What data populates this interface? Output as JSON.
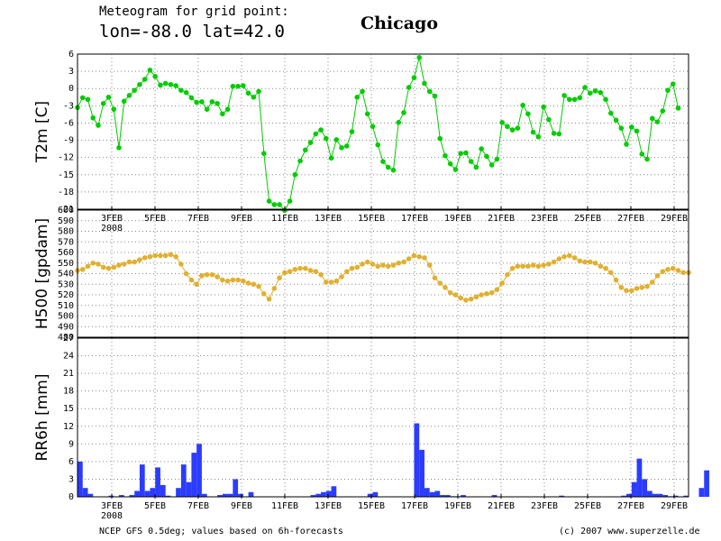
{
  "header": {
    "line1": "Meteogram for grid point:",
    "line2": "lon=-88.0 lat=42.0",
    "city": "Chicago"
  },
  "footer": {
    "left": "NCEP GFS 0.5deg; values based on 6h-forecasts",
    "right": "(c) 2007 www.superzelle.de"
  },
  "year_label": "2008",
  "x_ticks": [
    "3FEB",
    "5FEB",
    "7FEB",
    "9FEB",
    "11FEB",
    "13FEB",
    "15FEB",
    "17FEB",
    "19FEB",
    "21FEB",
    "23FEB",
    "25FEB",
    "27FEB",
    "29FEB"
  ],
  "colors": {
    "t2m": "#00cc00",
    "h500": "#e0b030",
    "rr6h": "#2b3cff",
    "grid": "#888888",
    "frame": "#000000"
  },
  "chart_data": [
    {
      "type": "line",
      "ylabel": "T2m [C]",
      "ylim": [
        -21,
        6
      ],
      "yticks": [
        -21,
        -18,
        -15,
        -12,
        -9,
        -6,
        -3,
        0,
        3,
        6
      ],
      "grid": true,
      "series": [
        {
          "values": [
            -3.3,
            -1.6,
            -1.9,
            -5.1,
            -6.4,
            -2.6,
            -1.5,
            -3.6,
            -10.3,
            -2.2,
            -1.2,
            -0.3,
            0.7,
            1.6,
            3.2,
            2.1,
            0.6,
            0.9,
            0.7,
            0.5,
            -0.3,
            -0.7,
            -1.6,
            -2.4,
            -2.3,
            -3.6,
            -2.3,
            -2.6,
            -4.4,
            -3.6,
            0.4,
            0.4,
            0.5,
            -0.8,
            -1.5,
            -0.5,
            -11.3,
            -19.6,
            -20.2,
            -20.2,
            -21.2,
            -19.6,
            -15.0,
            -12.6,
            -10.7,
            -9.4,
            -7.9,
            -7.2,
            -8.7,
            -12.1,
            -8.9,
            -10.3,
            -10.0,
            -7.5,
            -1.5,
            -0.5,
            -4.4,
            -6.6,
            -9.8,
            -12.7,
            -13.7,
            -14.2,
            -5.9,
            -4.2,
            0.2,
            1.9,
            5.4,
            0.9,
            -0.5,
            -1.3,
            -8.7,
            -11.7,
            -13.1,
            -14.1,
            -11.3,
            -11.2,
            -12.7,
            -13.7,
            -10.5,
            -11.8,
            -13.3,
            -12.3,
            -5.9,
            -6.6,
            -7.2,
            -6.9,
            -2.9,
            -4.4,
            -7.6,
            -8.4,
            -3.2,
            -5.4,
            -7.8,
            -7.9,
            -1.2,
            -1.9,
            -1.9,
            -1.6,
            0.2,
            -0.8,
            -0.4,
            -0.7,
            -1.9,
            -4.3,
            -5.5,
            -6.9,
            -9.7,
            -6.7,
            -7.4,
            -11.4,
            -12.3,
            -5.2,
            -5.8,
            -3.9,
            -0.3,
            0.8,
            -3.4
          ]
        }
      ]
    },
    {
      "type": "line",
      "ylabel": "H500 [gpdam]",
      "ylim": [
        480,
        600
      ],
      "yticks": [
        480,
        490,
        500,
        510,
        520,
        530,
        540,
        550,
        560,
        570,
        580,
        590,
        600
      ],
      "grid": true,
      "series": [
        {
          "values": [
            543,
            544,
            547,
            550,
            549,
            546,
            545,
            546,
            548,
            549,
            551,
            551,
            553,
            555,
            556,
            557,
            557,
            557,
            558,
            556,
            549,
            540,
            534,
            530,
            538,
            539,
            539,
            537,
            534,
            533,
            534,
            534,
            533,
            531,
            530,
            528,
            521,
            516,
            526,
            536,
            541,
            542,
            544,
            545,
            545,
            543,
            542,
            539,
            532,
            532,
            533,
            537,
            542,
            545,
            546,
            549,
            551,
            549,
            547,
            548,
            547,
            548,
            550,
            551,
            554,
            557,
            556,
            555,
            548,
            536,
            531,
            527,
            522,
            520,
            517,
            515,
            516,
            518,
            520,
            521,
            522,
            525,
            531,
            539,
            545,
            547,
            547,
            547,
            548,
            547,
            548,
            549,
            551,
            554,
            556,
            557,
            555,
            552,
            551,
            551,
            550,
            547,
            545,
            541,
            534,
            527,
            524,
            524,
            526,
            527,
            528,
            532,
            538,
            542,
            544,
            545,
            543,
            541,
            541
          ]
        }
      ]
    },
    {
      "type": "bar",
      "ylabel": "RR6h [mm]",
      "ylim": [
        0,
        27
      ],
      "yticks": [
        0,
        3,
        6,
        9,
        12,
        15,
        18,
        21,
        24,
        27
      ],
      "grid": true,
      "series": [
        {
          "values": [
            6.0,
            1.5,
            0.5,
            0,
            0,
            0,
            0.2,
            0,
            0.3,
            0,
            0.3,
            1.0,
            5.5,
            1.0,
            1.5,
            5.0,
            2.0,
            0.2,
            0,
            1.5,
            5.5,
            2.5,
            7.5,
            9.0,
            0.5,
            0,
            0,
            0.3,
            0.5,
            0.5,
            3.0,
            0.5,
            0,
            0.8,
            0,
            0,
            0,
            0,
            0,
            0,
            0,
            0,
            0,
            0,
            0,
            0.3,
            0.5,
            0.8,
            1.0,
            1.8,
            0,
            0,
            0,
            0,
            0,
            0,
            0.5,
            0.8,
            0,
            0,
            0,
            0,
            0,
            0,
            0,
            12.5,
            8.0,
            1.5,
            0.8,
            1.0,
            0.3,
            0.3,
            0.1,
            0.1,
            0.3,
            0,
            0,
            0,
            0,
            0,
            0.3,
            0,
            0,
            0,
            0,
            0,
            0,
            0,
            0,
            0,
            0,
            0,
            0,
            0.2,
            0,
            0,
            0,
            0,
            0,
            0,
            0,
            0,
            0,
            0,
            0,
            0.2,
            0.5,
            2.5,
            6.5,
            3.0,
            1.0,
            0.5,
            0.5,
            0.3,
            0.1,
            0.2,
            0,
            0.2,
            0,
            0,
            1.5,
            4.5
          ]
        }
      ]
    }
  ]
}
